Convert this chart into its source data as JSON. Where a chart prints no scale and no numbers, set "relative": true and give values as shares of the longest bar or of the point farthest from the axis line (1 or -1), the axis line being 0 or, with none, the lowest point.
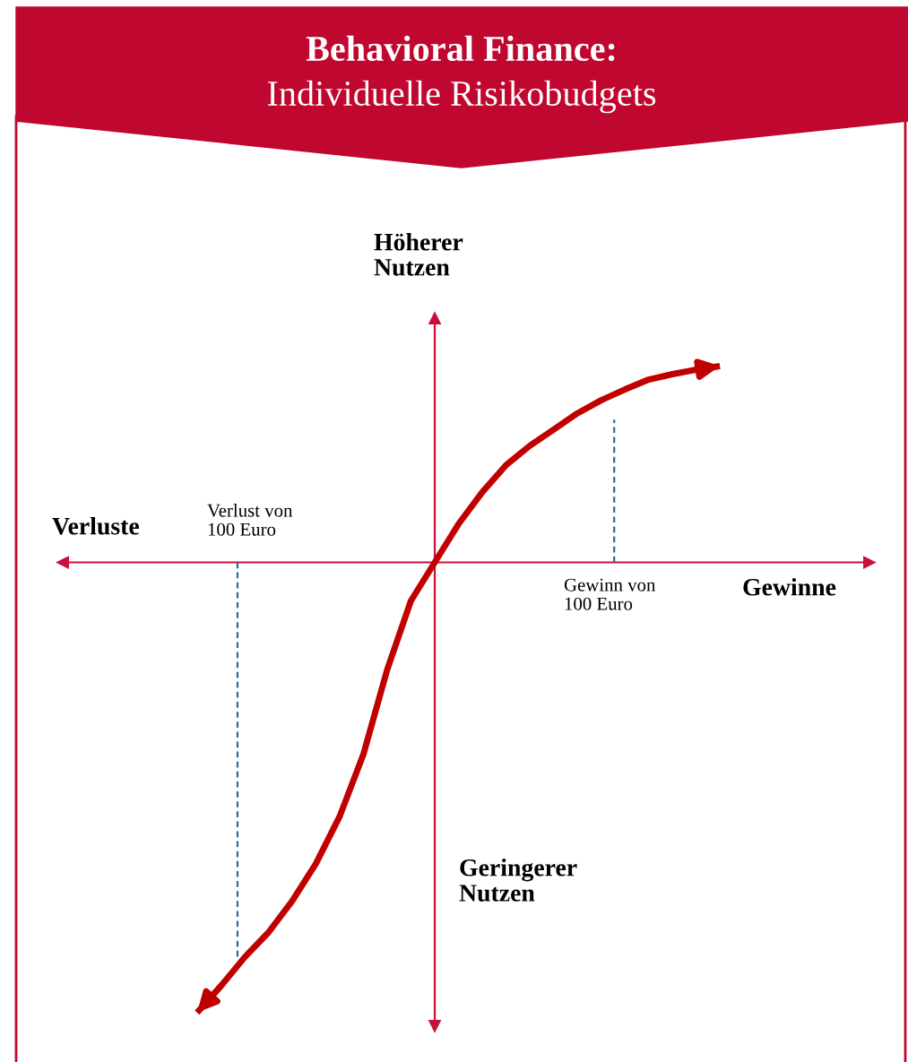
{
  "chart_data": {
    "type": "line",
    "relative": true,
    "title": "Behavioral Finance:",
    "subtitle": "Individuelle Risikobudgets",
    "annotations": [
      "Höherer\nNutzen",
      "Geringerer\nNutzen",
      "Verluste",
      "Gewinne",
      "Verlust von\n100 Euro",
      "Gewinn von\n100 Euro"
    ],
    "categories": [
      null,
      null,
      null,
      null,
      null,
      null,
      null,
      null,
      null,
      null,
      null,
      null,
      null,
      null,
      null,
      null,
      null,
      null,
      null,
      null,
      null,
      null,
      null
    ],
    "ref_lines": [
      {
        "axis": "y",
        "value": 0,
        "color": "#c8103c"
      }
    ],
    "series": [
      {
        "color": "#c00000",
        "values": [
          -1.0,
          -0.941,
          -0.877,
          -0.822,
          -0.752,
          -0.669,
          -0.564,
          -0.426,
          -0.238,
          -0.085,
          0,
          0.085,
          0.156,
          0.216,
          0.259,
          0.295,
          0.331,
          0.36,
          0.384,
          0.406,
          0.418,
          0.428,
          0.436
        ]
      }
    ]
  }
}
